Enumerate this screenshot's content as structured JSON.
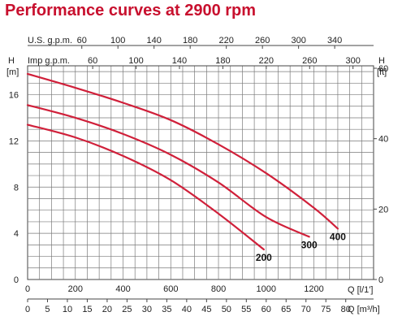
{
  "title": "Performance curves at 2900 rpm",
  "chart_data": {
    "type": "line",
    "title": "Performance curves at 2900 rpm",
    "x": {
      "label": "Q [l/1']",
      "lim": [
        0,
        1450
      ],
      "ticks": [
        0,
        200,
        400,
        600,
        800,
        1000,
        1200
      ]
    },
    "x_m3h": {
      "label": "Q [m³/h]",
      "ticks": [
        0,
        5,
        10,
        15,
        20,
        25,
        30,
        35,
        40,
        45,
        50,
        55,
        60,
        65,
        70,
        75,
        80
      ]
    },
    "x_usgpm": {
      "label": "U.S. g.p.m.",
      "ticks": [
        60,
        100,
        140,
        180,
        220,
        260,
        300,
        340
      ]
    },
    "x_impgpm": {
      "label": "Imp g.p.m.",
      "ticks": [
        60,
        100,
        140,
        180,
        220,
        260,
        300
      ]
    },
    "y_left": {
      "label": "H",
      "unit": "[m]",
      "lim": [
        0,
        18.5
      ],
      "ticks": [
        0,
        4,
        8,
        12,
        16
      ]
    },
    "y_right": {
      "label": "H",
      "unit": "[ft]",
      "ticks": [
        0,
        20,
        40,
        60
      ]
    },
    "grid": true,
    "curve_color": "#d0203a",
    "series": [
      {
        "name": "200",
        "x": [
          0,
          200,
          400,
          600,
          800,
          990
        ],
        "y": [
          13.4,
          12.3,
          10.7,
          8.6,
          5.7,
          2.6
        ]
      },
      {
        "name": "300",
        "x": [
          0,
          200,
          400,
          600,
          800,
          1000,
          1180
        ],
        "y": [
          15.1,
          14.0,
          12.6,
          10.8,
          8.4,
          5.4,
          3.7
        ]
      },
      {
        "name": "400",
        "x": [
          0,
          200,
          400,
          600,
          800,
          1000,
          1200,
          1300
        ],
        "y": [
          17.8,
          16.6,
          15.3,
          13.8,
          11.7,
          9.2,
          6.2,
          4.4
        ]
      }
    ]
  }
}
